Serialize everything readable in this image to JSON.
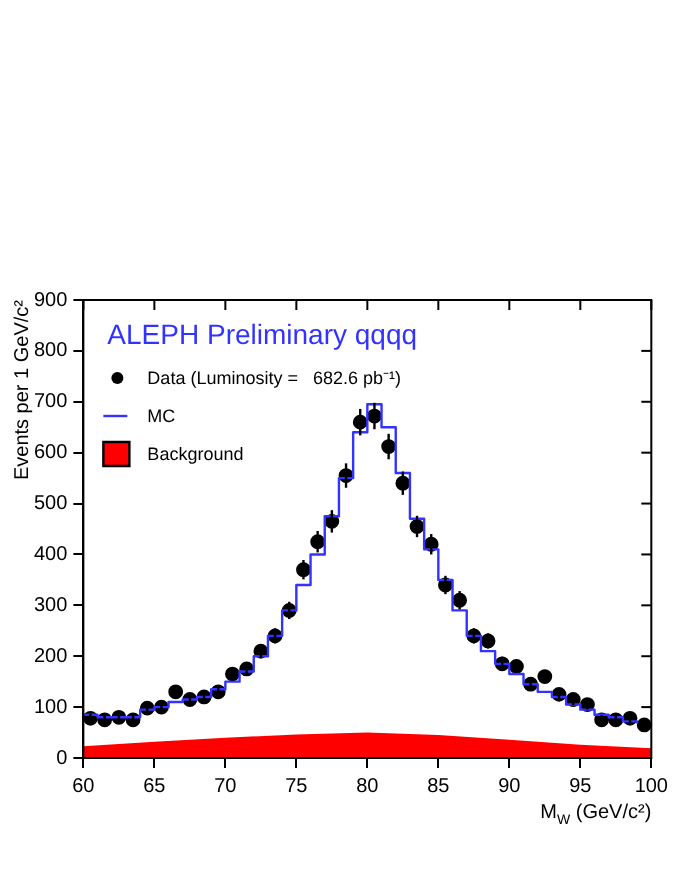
{
  "chart_data": {
    "type": "scatter",
    "title": "ALEPH Preliminary qqqq",
    "xlabel": "M$_{W}$ (GeV/c²)",
    "ylabel": "Events per 1 GeV/c²",
    "xlim": [
      60,
      100
    ],
    "xticks": [
      60,
      65,
      70,
      75,
      80,
      85,
      90,
      95,
      100
    ],
    "ylim": [
      0,
      900
    ],
    "yticks": [
      0,
      100,
      200,
      300,
      400,
      500,
      600,
      700,
      800,
      900
    ],
    "grid": false,
    "legend": "top left",
    "series": [
      {
        "name": "Background",
        "type": "area",
        "color": "#ff0000",
        "x": [
          60,
          65,
          70,
          75,
          80,
          85,
          90,
          95,
          100
        ],
        "values": [
          23,
          32,
          40,
          46,
          50,
          45,
          36,
          26,
          19
        ]
      },
      {
        "name": "MC",
        "type": "step",
        "color": "#3333ff",
        "x": [
          60,
          61,
          62,
          63,
          64,
          65,
          66,
          67,
          68,
          69,
          70,
          71,
          72,
          73,
          74,
          75,
          76,
          77,
          78,
          79,
          80,
          81,
          82,
          83,
          84,
          85,
          86,
          87,
          88,
          89,
          90,
          91,
          92,
          93,
          94,
          95,
          96,
          97,
          98,
          99
        ],
        "values": [
          85,
          80,
          80,
          80,
          95,
          100,
          110,
          115,
          120,
          135,
          150,
          170,
          200,
          240,
          290,
          340,
          400,
          475,
          550,
          640,
          695,
          650,
          560,
          470,
          410,
          350,
          290,
          240,
          210,
          185,
          165,
          145,
          130,
          120,
          105,
          95,
          85,
          80,
          72,
          68
        ]
      },
      {
        "name": "Data (Luminosity =   682.6 pb⁻¹)",
        "color": "#000000",
        "marker": "circle",
        "x": [
          60.5,
          61.5,
          62.5,
          63.5,
          64.5,
          65.5,
          66.5,
          67.5,
          68.5,
          69.5,
          70.5,
          71.5,
          72.5,
          73.5,
          74.5,
          75.5,
          76.5,
          77.5,
          78.5,
          79.5,
          80.5,
          81.5,
          82.5,
          83.5,
          84.5,
          85.5,
          86.5,
          87.5,
          88.5,
          89.5,
          90.5,
          91.5,
          92.5,
          93.5,
          94.5,
          95.5,
          96.5,
          97.5,
          98.5,
          99.5
        ],
        "values": [
          78,
          75,
          80,
          75,
          98,
          100,
          130,
          115,
          120,
          130,
          165,
          175,
          210,
          240,
          290,
          370,
          425,
          465,
          555,
          660,
          672,
          612,
          540,
          455,
          420,
          340,
          310,
          240,
          230,
          185,
          180,
          145,
          160,
          125,
          115,
          105,
          75,
          75,
          78,
          65
        ],
        "errors": [
          9,
          9,
          9,
          9,
          10,
          10,
          11,
          11,
          11,
          11,
          13,
          13,
          14,
          15,
          17,
          19,
          21,
          22,
          24,
          26,
          26,
          25,
          23,
          21,
          20,
          18,
          18,
          15,
          15,
          14,
          13,
          12,
          13,
          11,
          11,
          10,
          9,
          9,
          9,
          8
        ]
      }
    ]
  }
}
